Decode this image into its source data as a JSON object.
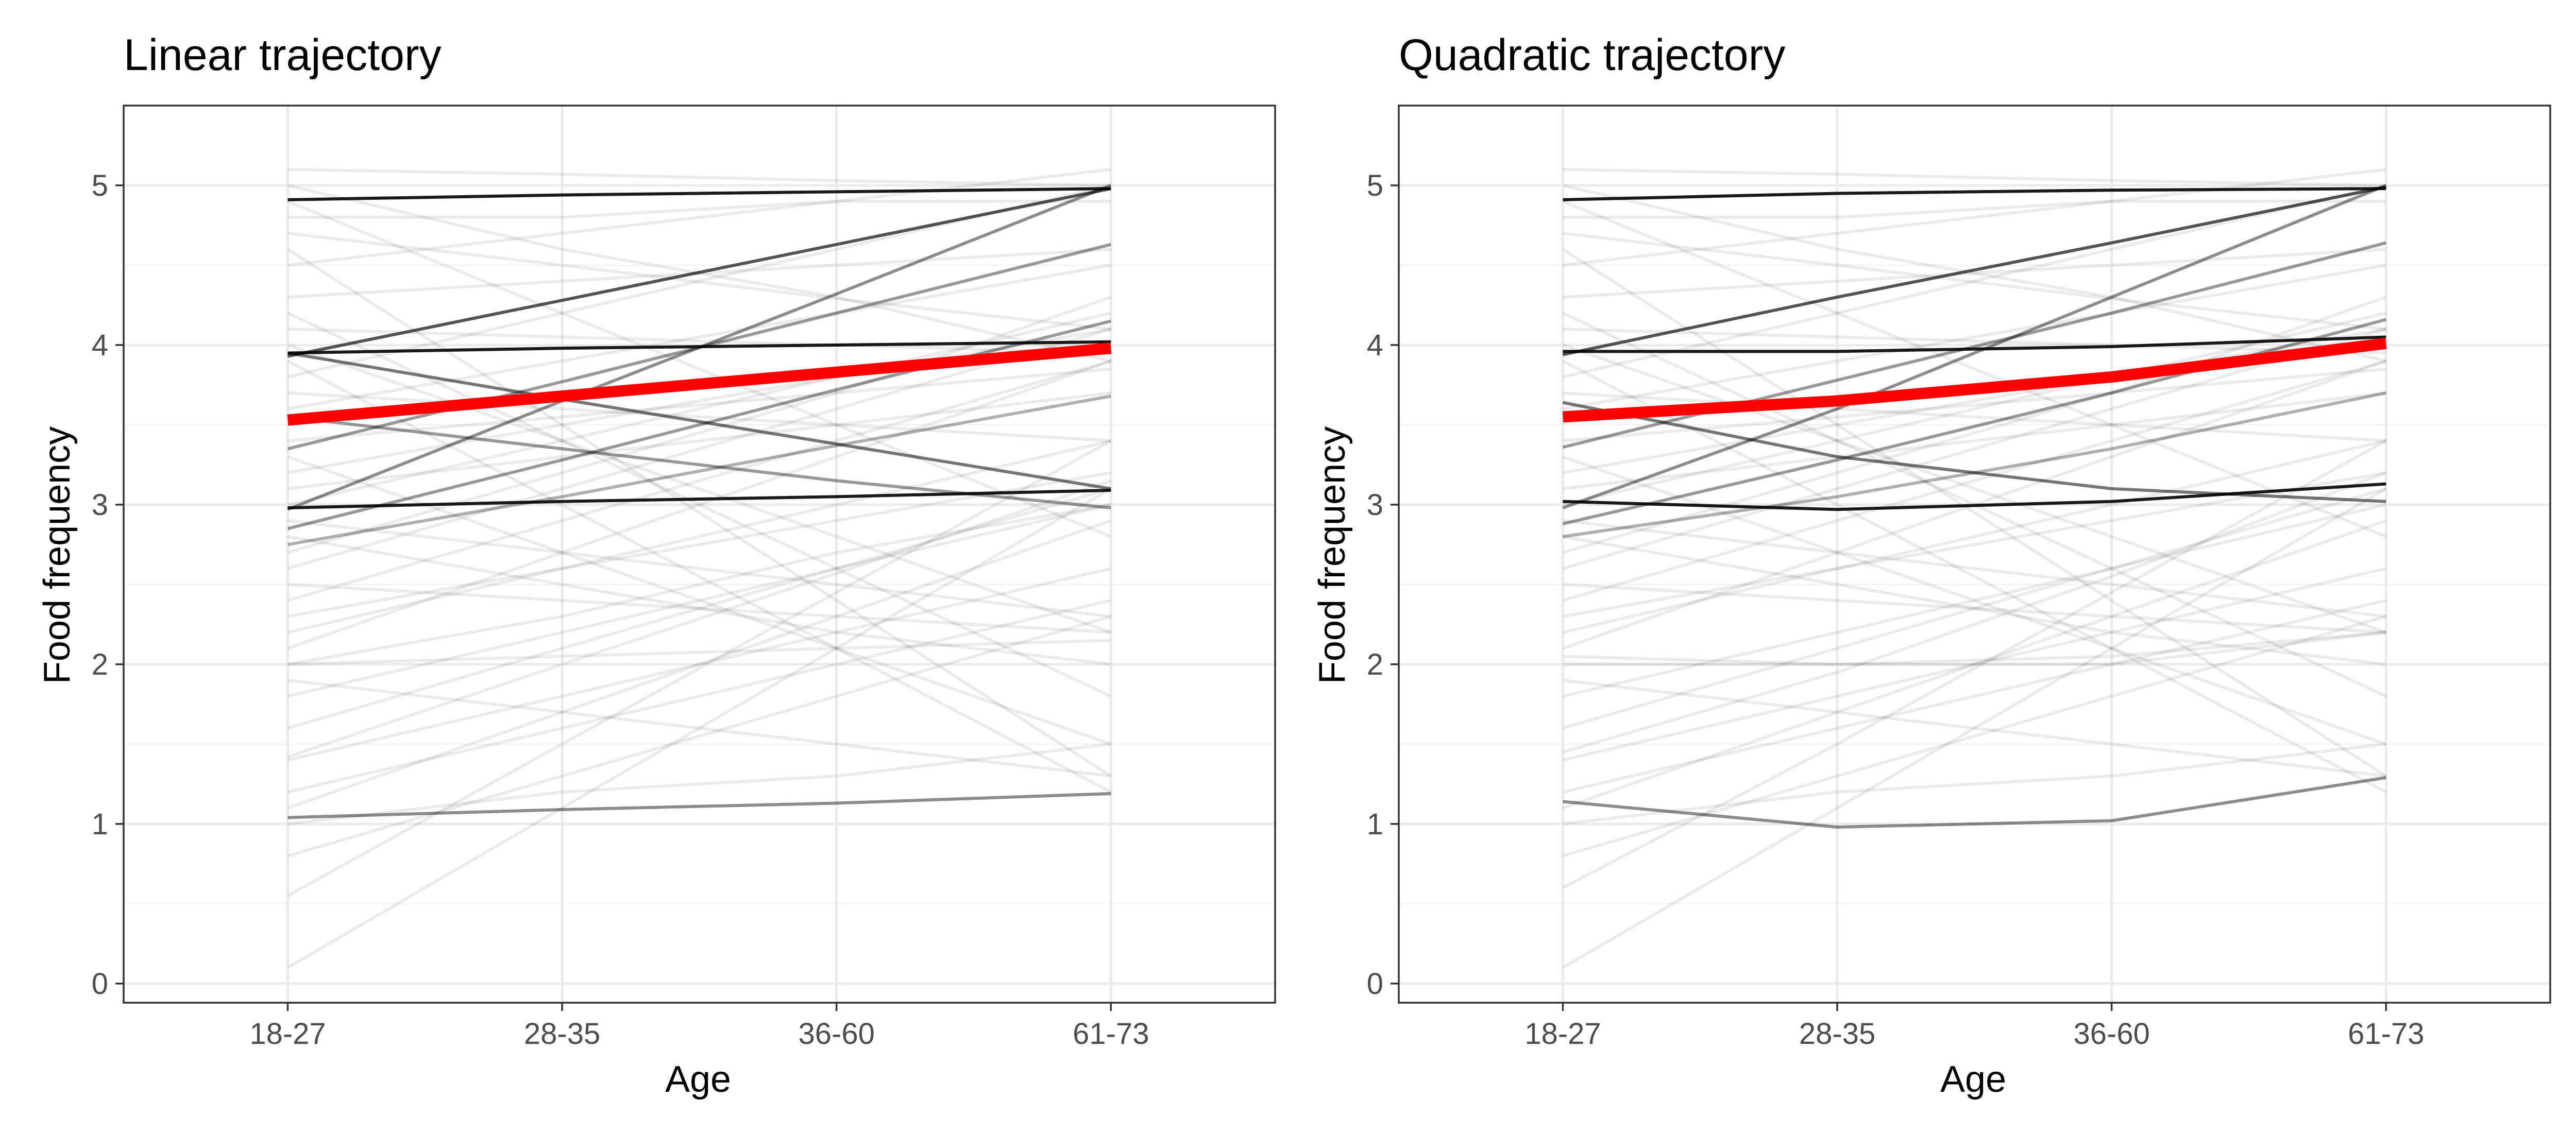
{
  "chart_data": [
    {
      "type": "line",
      "title": "Linear trajectory",
      "xlabel": "Age",
      "ylabel": "Food frequency",
      "categories": [
        "18-27",
        "28-35",
        "36-60",
        "61-73"
      ],
      "yticks": [
        0,
        1,
        2,
        3,
        4,
        5
      ],
      "ylim": [
        -0.12,
        5.5
      ],
      "grid": true,
      "mean": {
        "color": "#ff0000",
        "values": [
          3.53,
          3.68,
          3.83,
          3.98
        ]
      },
      "highlight_series": [
        {
          "values": [
            4.91,
            4.94,
            4.96,
            4.98
          ],
          "opacity": 1.0
        },
        {
          "values": [
            3.95,
            3.98,
            4.0,
            4.02
          ],
          "opacity": 1.0
        },
        {
          "values": [
            2.98,
            3.02,
            3.05,
            3.09
          ],
          "opacity": 1.0
        },
        {
          "values": [
            3.93,
            4.28,
            4.63,
            4.98
          ],
          "opacity": 0.75
        },
        {
          "values": [
            3.95,
            3.66,
            3.38,
            3.1
          ],
          "opacity": 0.6
        },
        {
          "values": [
            1.04,
            1.09,
            1.13,
            1.19
          ],
          "opacity": 0.5
        },
        {
          "values": [
            2.97,
            3.65,
            4.32,
            5.0
          ],
          "opacity": 0.5
        },
        {
          "values": [
            3.35,
            3.77,
            4.2,
            4.63
          ],
          "opacity": 0.45
        },
        {
          "values": [
            2.85,
            3.28,
            3.72,
            4.15
          ],
          "opacity": 0.45
        },
        {
          "values": [
            3.55,
            3.35,
            3.15,
            2.98
          ],
          "opacity": 0.45
        },
        {
          "values": [
            2.75,
            3.05,
            3.37,
            3.68
          ],
          "opacity": 0.35
        }
      ],
      "background_series": [
        [
          5.1,
          5.07,
          5.03,
          5.0
        ],
        [
          4.7,
          4.5,
          4.29,
          4.1
        ],
        [
          4.3,
          4.4,
          4.5,
          4.6
        ],
        [
          4.1,
          4.05,
          4.0,
          3.95
        ],
        [
          4.5,
          4.7,
          4.9,
          5.1
        ],
        [
          3.8,
          4.2,
          4.6,
          5.0
        ],
        [
          3.7,
          3.6,
          3.5,
          3.4
        ],
        [
          3.4,
          3.55,
          3.7,
          3.85
        ],
        [
          3.2,
          3.5,
          3.8,
          4.1
        ],
        [
          3.0,
          3.4,
          3.8,
          4.2
        ],
        [
          2.6,
          3.1,
          3.6,
          4.1
        ],
        [
          2.4,
          2.9,
          3.4,
          3.9
        ],
        [
          2.3,
          2.6,
          2.9,
          3.2
        ],
        [
          2.2,
          2.6,
          3.0,
          3.4
        ],
        [
          2.0,
          2.3,
          2.7,
          3.0
        ],
        [
          2.0,
          2.05,
          2.1,
          2.15
        ],
        [
          1.8,
          2.2,
          2.6,
          3.0
        ],
        [
          1.6,
          2.1,
          2.6,
          3.1
        ],
        [
          1.4,
          1.8,
          2.2,
          2.6
        ],
        [
          1.42,
          2.0,
          2.57,
          3.15
        ],
        [
          1.2,
          1.6,
          2.0,
          2.4
        ],
        [
          0.8,
          1.3,
          1.8,
          2.3
        ],
        [
          0.55,
          1.5,
          2.45,
          3.4
        ],
        [
          0.1,
          1.1,
          2.1,
          3.1
        ],
        [
          4.9,
          4.2,
          3.5,
          2.8
        ],
        [
          4.6,
          3.5,
          2.4,
          1.3
        ],
        [
          4.2,
          3.4,
          2.6,
          1.8
        ],
        [
          3.9,
          3.0,
          2.1,
          1.2
        ],
        [
          3.3,
          2.7,
          2.1,
          1.5
        ],
        [
          2.8,
          2.5,
          2.2,
          2.0
        ],
        [
          2.5,
          2.4,
          2.3,
          2.2
        ],
        [
          5.0,
          4.6,
          4.3,
          3.9
        ],
        [
          4.8,
          4.8,
          4.9,
          4.9
        ],
        [
          3.1,
          3.3,
          3.5,
          3.7
        ],
        [
          2.9,
          2.7,
          2.5,
          2.3
        ],
        [
          1.0,
          1.2,
          1.3,
          1.5
        ],
        [
          1.9,
          1.7,
          1.5,
          1.3
        ],
        [
          4.0,
          3.4,
          2.8,
          2.2
        ],
        [
          2.7,
          3.2,
          3.7,
          4.3
        ],
        [
          3.6,
          3.9,
          4.2,
          4.5
        ],
        [
          2.1,
          2.7,
          3.3,
          3.9
        ],
        [
          1.1,
          1.7,
          2.3,
          2.9
        ]
      ]
    },
    {
      "type": "line",
      "title": "Quadratic trajectory",
      "xlabel": "Age",
      "ylabel": "Food frequency",
      "categories": [
        "18-27",
        "28-35",
        "36-60",
        "61-73"
      ],
      "yticks": [
        0,
        1,
        2,
        3,
        4,
        5
      ],
      "ylim": [
        -0.12,
        5.5
      ],
      "grid": true,
      "mean": {
        "color": "#ff0000",
        "values": [
          3.55,
          3.65,
          3.8,
          4.01
        ]
      },
      "highlight_series": [
        {
          "values": [
            4.91,
            4.95,
            4.97,
            4.98
          ],
          "opacity": 1.0
        },
        {
          "values": [
            3.96,
            3.96,
            3.99,
            4.05
          ],
          "opacity": 1.0
        },
        {
          "values": [
            3.02,
            2.97,
            3.02,
            3.13
          ],
          "opacity": 1.0
        },
        {
          "values": [
            3.94,
            4.3,
            4.64,
            4.99
          ],
          "opacity": 0.75
        },
        {
          "values": [
            3.64,
            3.3,
            3.1,
            3.02
          ],
          "opacity": 0.6
        },
        {
          "values": [
            1.14,
            0.98,
            1.02,
            1.29
          ],
          "opacity": 0.5
        },
        {
          "values": [
            2.98,
            3.6,
            4.3,
            5.0
          ],
          "opacity": 0.5
        },
        {
          "values": [
            3.36,
            3.78,
            4.2,
            4.64
          ],
          "opacity": 0.45
        },
        {
          "values": [
            2.88,
            3.28,
            3.7,
            4.16
          ],
          "opacity": 0.45
        },
        {
          "values": [
            2.8,
            3.05,
            3.35,
            3.7
          ],
          "opacity": 0.35
        }
      ],
      "background_series": [
        [
          5.1,
          5.07,
          5.03,
          5.0
        ],
        [
          4.7,
          4.5,
          4.29,
          4.1
        ],
        [
          4.3,
          4.4,
          4.5,
          4.6
        ],
        [
          4.1,
          4.05,
          4.0,
          3.95
        ],
        [
          4.5,
          4.7,
          4.9,
          5.1
        ],
        [
          3.8,
          4.2,
          4.6,
          5.0
        ],
        [
          3.7,
          3.6,
          3.5,
          3.4
        ],
        [
          3.4,
          3.55,
          3.7,
          3.85
        ],
        [
          3.2,
          3.5,
          3.8,
          4.1
        ],
        [
          3.0,
          3.4,
          3.8,
          4.2
        ],
        [
          2.6,
          3.1,
          3.6,
          4.1
        ],
        [
          2.4,
          2.9,
          3.4,
          3.9
        ],
        [
          2.3,
          2.6,
          2.9,
          3.2
        ],
        [
          2.2,
          2.6,
          3.0,
          3.4
        ],
        [
          2.0,
          2.0,
          2.05,
          2.2
        ],
        [
          2.05,
          2.0,
          2.0,
          2.2
        ],
        [
          1.8,
          2.2,
          2.6,
          3.0
        ],
        [
          1.6,
          2.1,
          2.6,
          3.1
        ],
        [
          1.4,
          1.8,
          2.2,
          2.6
        ],
        [
          1.45,
          1.95,
          2.55,
          3.2
        ],
        [
          1.2,
          1.6,
          2.0,
          2.4
        ],
        [
          0.8,
          1.3,
          1.8,
          2.3
        ],
        [
          0.6,
          1.5,
          2.45,
          3.4
        ],
        [
          0.1,
          1.1,
          2.1,
          3.1
        ],
        [
          4.9,
          4.2,
          3.5,
          2.8
        ],
        [
          4.6,
          3.5,
          2.4,
          1.3
        ],
        [
          4.2,
          3.4,
          2.6,
          1.8
        ],
        [
          3.9,
          3.0,
          2.1,
          1.2
        ],
        [
          3.3,
          2.7,
          2.1,
          1.5
        ],
        [
          2.8,
          2.5,
          2.2,
          2.0
        ],
        [
          2.5,
          2.4,
          2.3,
          2.2
        ],
        [
          5.0,
          4.6,
          4.3,
          3.9
        ],
        [
          4.8,
          4.8,
          4.9,
          4.9
        ],
        [
          3.1,
          3.3,
          3.5,
          3.7
        ],
        [
          2.9,
          2.7,
          2.5,
          2.3
        ],
        [
          1.0,
          1.2,
          1.3,
          1.5
        ],
        [
          1.9,
          1.7,
          1.5,
          1.3
        ],
        [
          4.0,
          3.4,
          2.8,
          2.2
        ],
        [
          2.7,
          3.2,
          3.7,
          4.3
        ],
        [
          3.6,
          3.9,
          4.2,
          4.5
        ],
        [
          2.1,
          2.7,
          3.3,
          3.9
        ],
        [
          1.1,
          1.7,
          2.3,
          2.9
        ]
      ]
    }
  ]
}
